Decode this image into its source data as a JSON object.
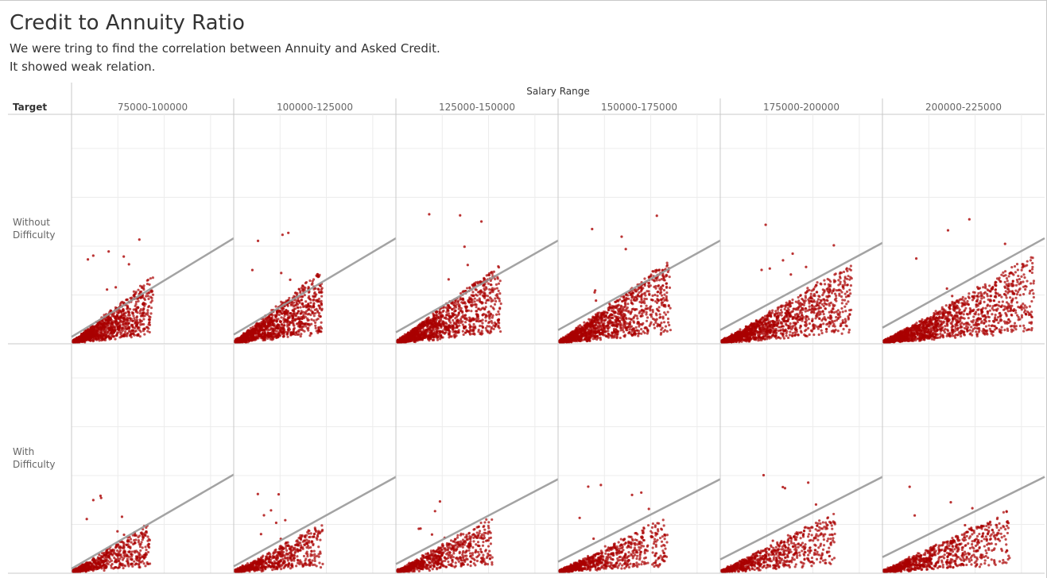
{
  "title": "Credit to Annuity Ratio",
  "subtitle_lines": [
    "We were tring to find the correlation between Annuity and Asked Credit.",
    "It showed weak relation."
  ],
  "colors": {
    "points": "#aa0000",
    "trend_line": "#999999",
    "axis": "#c8c8c8",
    "grid": "#ececec",
    "text": "#333333",
    "muted_text": "#666666"
  },
  "chart_data": {
    "type": "scatter",
    "column_header": "Salary Range",
    "row_header": "Target",
    "columns": [
      "75000-100000",
      "100000-125000",
      "125000-150000",
      "150000-175000",
      "175000-200000",
      "200000-225000"
    ],
    "rows": [
      {
        "label": "Without Difficulty",
        "label_lines": [
          "Without",
          "Difficulty"
        ],
        "panels": [
          {
            "spread_x": 0.5,
            "spread_y": 0.45,
            "point_count": 1300,
            "trend": [
              [
                0,
                0.03
              ],
              [
                1,
                0.46
              ]
            ]
          },
          {
            "spread_x": 0.55,
            "spread_y": 0.5,
            "point_count": 1400,
            "trend": [
              [
                0,
                0.04
              ],
              [
                1,
                0.46
              ]
            ]
          },
          {
            "spread_x": 0.65,
            "spread_y": 0.55,
            "point_count": 1500,
            "trend": [
              [
                0,
                0.05
              ],
              [
                1,
                0.45
              ]
            ]
          },
          {
            "spread_x": 0.7,
            "spread_y": 0.57,
            "point_count": 1500,
            "trend": [
              [
                0,
                0.06
              ],
              [
                1,
                0.45
              ]
            ]
          },
          {
            "spread_x": 0.82,
            "spread_y": 0.55,
            "point_count": 1500,
            "trend": [
              [
                0,
                0.06
              ],
              [
                1,
                0.44
              ]
            ]
          },
          {
            "spread_x": 0.95,
            "spread_y": 0.6,
            "point_count": 1700,
            "trend": [
              [
                0,
                0.07
              ],
              [
                1,
                0.46
              ]
            ]
          }
        ]
      },
      {
        "label": "With Difficulty",
        "label_lines": [
          "With",
          "Difficulty"
        ],
        "panels": [
          {
            "spread_x": 0.48,
            "spread_y": 0.33,
            "point_count": 700,
            "trend": [
              [
                0,
                0.02
              ],
              [
                1,
                0.43
              ]
            ]
          },
          {
            "spread_x": 0.55,
            "spread_y": 0.33,
            "point_count": 800,
            "trend": [
              [
                0,
                0.03
              ],
              [
                1,
                0.42
              ]
            ]
          },
          {
            "spread_x": 0.6,
            "spread_y": 0.38,
            "point_count": 850,
            "trend": [
              [
                0,
                0.04
              ],
              [
                1,
                0.41
              ]
            ]
          },
          {
            "spread_x": 0.68,
            "spread_y": 0.38,
            "point_count": 850,
            "trend": [
              [
                0,
                0.05
              ],
              [
                1,
                0.41
              ]
            ]
          },
          {
            "spread_x": 0.72,
            "spread_y": 0.42,
            "point_count": 850,
            "trend": [
              [
                0,
                0.06
              ],
              [
                1,
                0.42
              ]
            ]
          },
          {
            "spread_x": 0.8,
            "spread_y": 0.44,
            "point_count": 950,
            "trend": [
              [
                0,
                0.07
              ],
              [
                1,
                0.42
              ]
            ]
          }
        ]
      }
    ],
    "x_axis": {
      "grid_divisions": 3.5
    },
    "y_axis": {
      "grid_divisions": 4.7
    },
    "grid": true,
    "legend": "none"
  }
}
